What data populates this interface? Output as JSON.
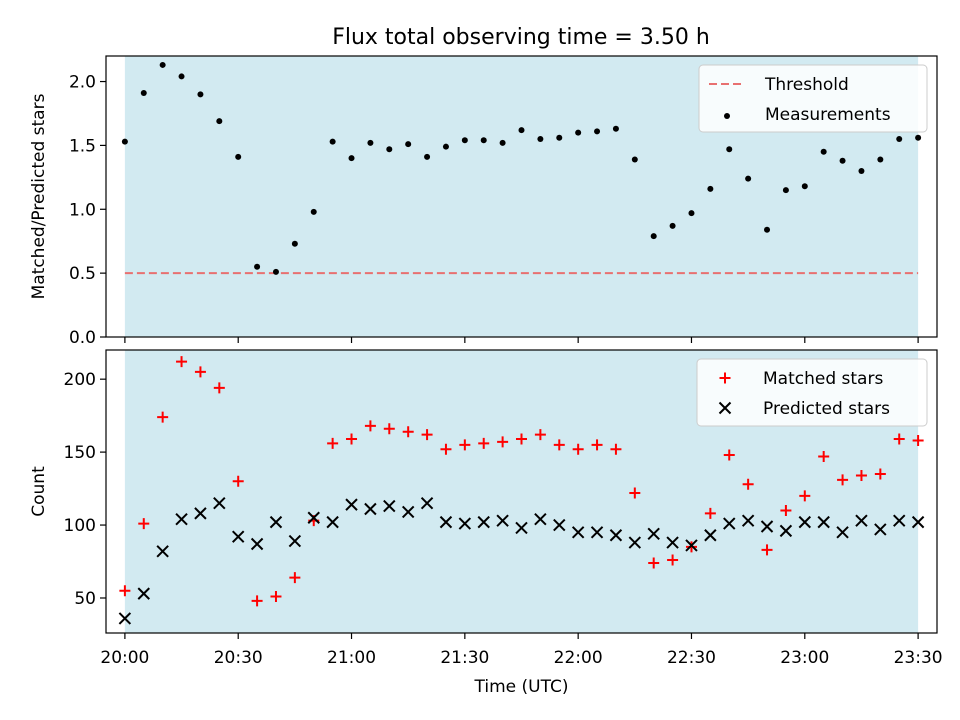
{
  "figure": {
    "title": "Flux total observing time = 3.50 h"
  },
  "chart_data": [
    {
      "type": "scatter",
      "title": "Flux total observing time = 3.50 h",
      "xlabel": "",
      "ylabel": "Matched/Predicted stars",
      "xlim": [
        "19:55",
        "23:35"
      ],
      "ylim": [
        0,
        2.2
      ],
      "yticks": [
        "0.0",
        "0.5",
        "1.0",
        "1.5",
        "2.0"
      ],
      "xticks": [
        "20:00",
        "20:30",
        "21:00",
        "21:30",
        "22:00",
        "22:30",
        "23:00",
        "23:30"
      ],
      "shaded_span": [
        "20:00",
        "23:30"
      ],
      "threshold": 0.5,
      "legend_position": "top-right",
      "legend": [
        {
          "label": "Threshold",
          "style": "dashed-line"
        },
        {
          "label": "Measurements",
          "style": "dot"
        }
      ],
      "x": [
        "20:00",
        "20:05",
        "20:10",
        "20:15",
        "20:20",
        "20:25",
        "20:30",
        "20:35",
        "20:40",
        "20:45",
        "20:50",
        "20:55",
        "21:00",
        "21:05",
        "21:10",
        "21:15",
        "21:20",
        "21:25",
        "21:30",
        "21:35",
        "21:40",
        "21:45",
        "21:50",
        "21:55",
        "22:00",
        "22:05",
        "22:10",
        "22:15",
        "22:20",
        "22:25",
        "22:30",
        "22:35",
        "22:40",
        "22:45",
        "22:50",
        "22:55",
        "23:00",
        "23:05",
        "23:10",
        "23:15",
        "23:20",
        "23:25",
        "23:30"
      ],
      "series": [
        {
          "name": "Measurements",
          "values": [
            1.53,
            1.91,
            2.13,
            2.04,
            1.9,
            1.69,
            1.41,
            0.55,
            0.51,
            0.73,
            0.98,
            1.53,
            1.4,
            1.52,
            1.47,
            1.51,
            1.41,
            1.49,
            1.54,
            1.54,
            1.52,
            1.62,
            1.55,
            1.56,
            1.6,
            1.61,
            1.63,
            1.39,
            0.79,
            0.87,
            0.97,
            1.16,
            1.47,
            1.24,
            0.84,
            1.15,
            1.18,
            1.45,
            1.38,
            1.3,
            1.39,
            1.55,
            1.56
          ]
        }
      ]
    },
    {
      "type": "scatter",
      "title": "",
      "xlabel": "Time (UTC)",
      "ylabel": "Count",
      "xlim": [
        "19:55",
        "23:35"
      ],
      "ylim": [
        26,
        220
      ],
      "yticks": [
        "50",
        "100",
        "150",
        "200"
      ],
      "xticks": [
        "20:00",
        "20:30",
        "21:00",
        "21:30",
        "22:00",
        "22:30",
        "23:00",
        "23:30"
      ],
      "shaded_span": [
        "20:00",
        "23:30"
      ],
      "legend_position": "top-right",
      "legend": [
        {
          "label": "Matched stars",
          "style": "plus"
        },
        {
          "label": "Predicted stars",
          "style": "x"
        }
      ],
      "x": [
        "20:00",
        "20:05",
        "20:10",
        "20:15",
        "20:20",
        "20:25",
        "20:30",
        "20:35",
        "20:40",
        "20:45",
        "20:50",
        "20:55",
        "21:00",
        "21:05",
        "21:10",
        "21:15",
        "21:20",
        "21:25",
        "21:30",
        "21:35",
        "21:40",
        "21:45",
        "21:50",
        "21:55",
        "22:00",
        "22:05",
        "22:10",
        "22:15",
        "22:20",
        "22:25",
        "22:30",
        "22:35",
        "22:40",
        "22:45",
        "22:50",
        "22:55",
        "23:00",
        "23:05",
        "23:10",
        "23:15",
        "23:20",
        "23:25",
        "23:30"
      ],
      "series": [
        {
          "name": "Matched stars",
          "color": "#ff0000",
          "values": [
            55,
            101,
            174,
            212,
            205,
            194,
            130,
            48,
            51,
            64,
            103,
            156,
            159,
            168,
            166,
            164,
            162,
            152,
            155,
            156,
            157,
            159,
            162,
            155,
            152,
            155,
            152,
            122,
            74,
            76,
            85,
            108,
            148,
            128,
            83,
            110,
            120,
            147,
            131,
            134,
            135,
            159,
            158
          ]
        },
        {
          "name": "Predicted stars",
          "color": "#000000",
          "values": [
            36,
            53,
            82,
            104,
            108,
            115,
            92,
            87,
            102,
            89,
            105,
            102,
            114,
            111,
            113,
            109,
            115,
            102,
            101,
            102,
            103,
            98,
            104,
            100,
            95,
            95,
            93,
            88,
            94,
            88,
            86,
            93,
            101,
            103,
            99,
            96,
            102,
            102,
            95,
            103,
            97,
            103,
            102
          ]
        }
      ]
    }
  ],
  "colors": {
    "shade": "#add8e6",
    "threshold": "#e87070",
    "matched": "#ff0000",
    "predicted": "#000000",
    "measurement": "#000000"
  }
}
